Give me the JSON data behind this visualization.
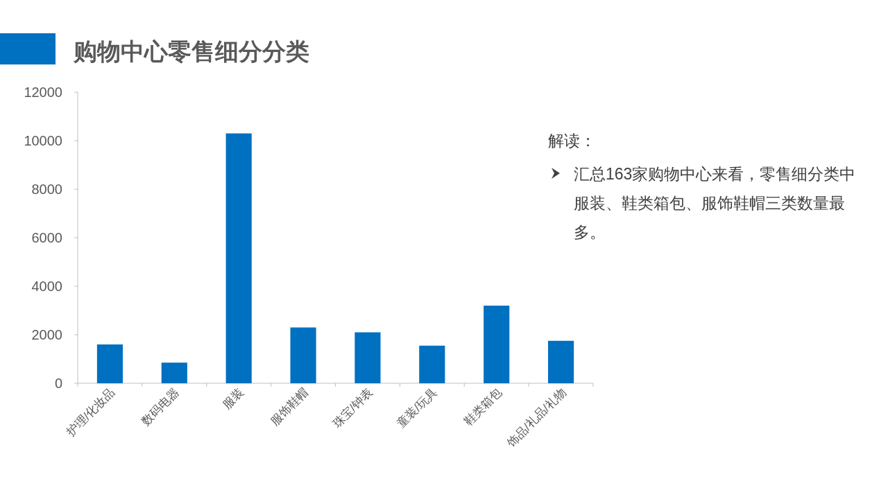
{
  "chart_data": {
    "type": "bar",
    "title": "购物中心零售细分分类",
    "categories": [
      "护理/化妆品",
      "数码电器",
      "服装",
      "服饰鞋帽",
      "珠宝/钟表",
      "童装/玩具",
      "鞋类箱包",
      "饰品/礼品/礼物"
    ],
    "values": [
      1600,
      850,
      10300,
      2300,
      2100,
      1550,
      3200,
      1750
    ],
    "color": "#0070c0",
    "ylim": [
      0,
      12000
    ],
    "yticks": [
      0,
      2000,
      4000,
      6000,
      8000,
      10000,
      12000
    ],
    "grid": false,
    "annotations": [
      "解读：",
      "汇总163家购物中心来看，零售细分类中服装、鞋类箱包、服饰鞋帽三类数量最多。"
    ]
  }
}
